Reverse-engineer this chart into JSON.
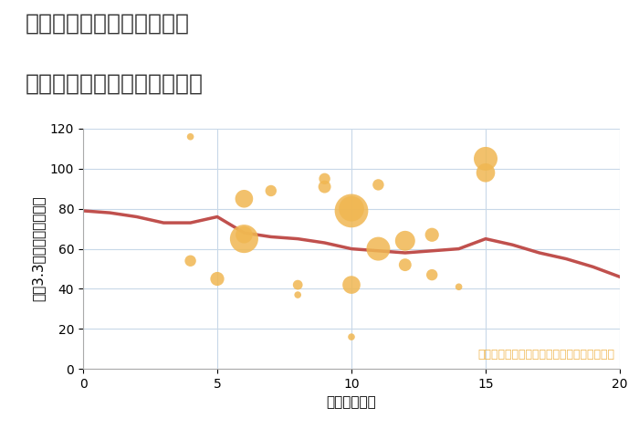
{
  "title_line1": "三重県四日市市小古曽町の",
  "title_line2": "駅距離別中古マンション価格",
  "xlabel": "駅距離（分）",
  "ylabel": "坪（3.3㎡）単価（万円）",
  "xlim": [
    0,
    20
  ],
  "ylim": [
    0,
    120
  ],
  "yticks": [
    0,
    20,
    40,
    60,
    80,
    100,
    120
  ],
  "xticks": [
    0,
    5,
    10,
    15,
    20
  ],
  "scatter_x": [
    4,
    4,
    5,
    6,
    6,
    6,
    7,
    8,
    8,
    9,
    9,
    10,
    10,
    10,
    10,
    11,
    11,
    12,
    12,
    13,
    13,
    14,
    15,
    15
  ],
  "scatter_y": [
    116,
    54,
    45,
    85,
    65,
    67,
    89,
    42,
    37,
    91,
    95,
    79,
    80,
    42,
    16,
    92,
    60,
    64,
    52,
    67,
    47,
    41,
    105,
    98
  ],
  "scatter_size": [
    30,
    80,
    120,
    200,
    500,
    180,
    80,
    60,
    30,
    100,
    80,
    700,
    400,
    200,
    30,
    80,
    350,
    250,
    100,
    120,
    80,
    30,
    350,
    220
  ],
  "scatter_color": "#f0b752",
  "scatter_alpha": 0.85,
  "trend_x": [
    0,
    1,
    2,
    3,
    4,
    5,
    6,
    7,
    8,
    9,
    10,
    11,
    12,
    13,
    14,
    15,
    16,
    17,
    18,
    19,
    20
  ],
  "trend_y": [
    79,
    78,
    76,
    73,
    73,
    76,
    68,
    66,
    65,
    63,
    60,
    59,
    58,
    59,
    60,
    65,
    62,
    58,
    55,
    51,
    46
  ],
  "trend_color": "#c0504d",
  "trend_linewidth": 2.5,
  "annotation_text": "円の大きさは、取引のあった物件面積を示す",
  "annotation_color": "#f0b752",
  "background_color": "#ffffff",
  "grid_color": "#c8d8e8",
  "title_fontsize": 18,
  "axis_label_fontsize": 11,
  "tick_fontsize": 10,
  "annotation_fontsize": 9,
  "title_color": "#333333",
  "spine_color": "#aaaaaa"
}
